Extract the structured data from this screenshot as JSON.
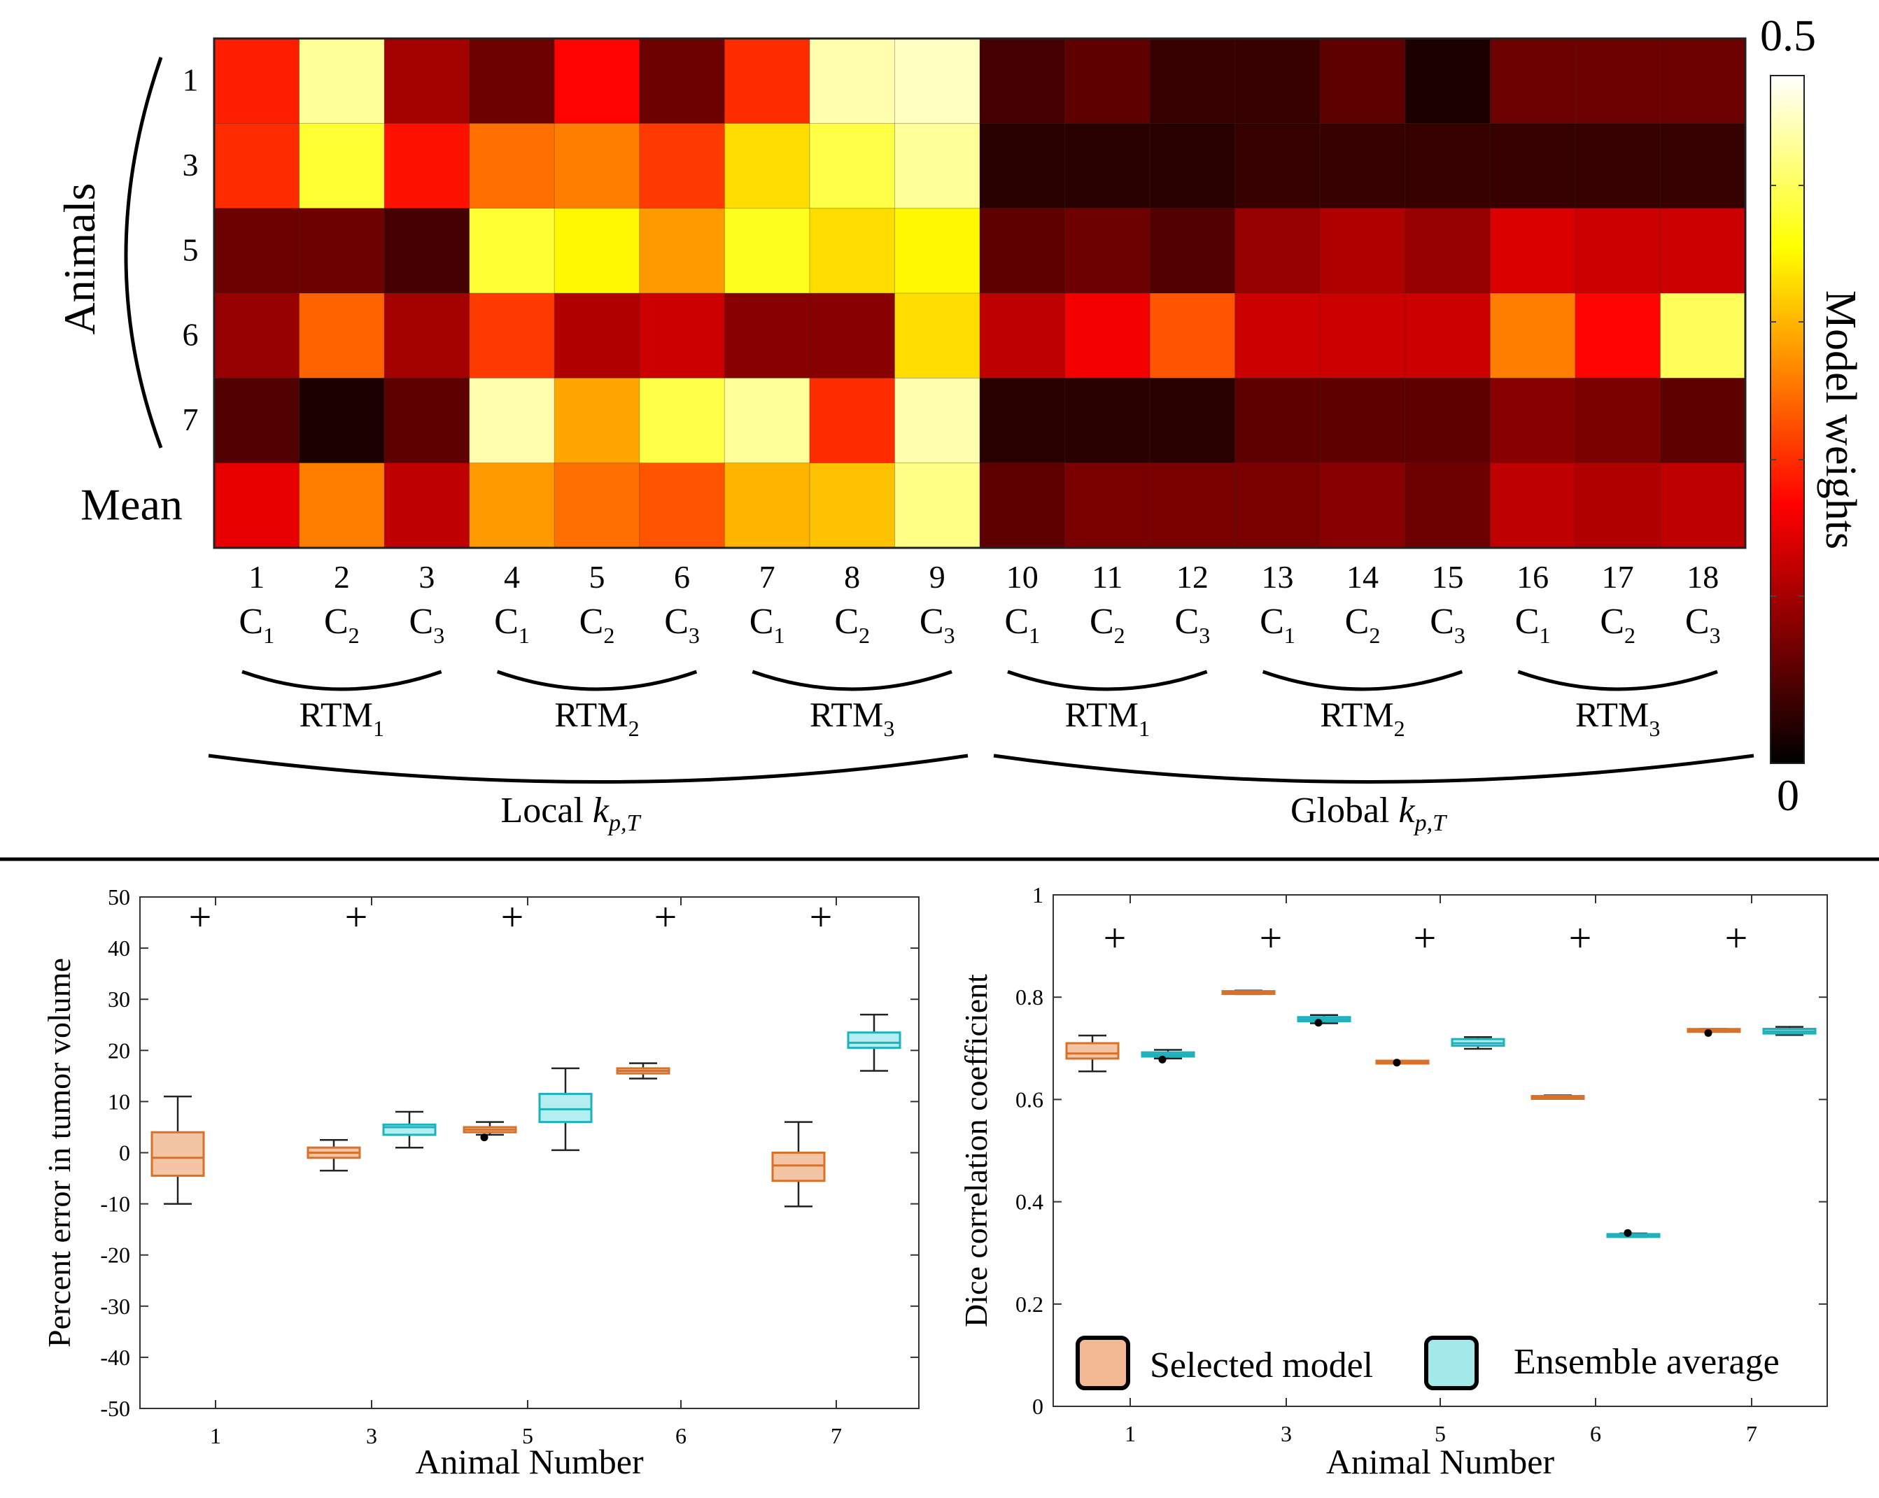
{
  "chart_data": [
    {
      "type": "heatmap",
      "title": "",
      "row_labels": [
        "1",
        "3",
        "5",
        "6",
        "7",
        "Mean"
      ],
      "row_group_label": "Animals",
      "column_numbers": [
        "1",
        "2",
        "3",
        "4",
        "5",
        "6",
        "7",
        "8",
        "9",
        "10",
        "11",
        "12",
        "13",
        "14",
        "15",
        "16",
        "17",
        "18"
      ],
      "column_subscripts": [
        "1",
        "2",
        "3",
        "1",
        "2",
        "3",
        "1",
        "2",
        "3",
        "1",
        "2",
        "3",
        "1",
        "2",
        "3",
        "1",
        "2",
        "3"
      ],
      "column_letter": "C",
      "rtm_prefix": "RTM",
      "rtm_subscripts": [
        "1",
        "2",
        "3",
        "1",
        "2",
        "3"
      ],
      "group_labels": [
        {
          "prefix": "Local ",
          "k": "k",
          "sub": "p,T"
        },
        {
          "prefix": "Global ",
          "k": "k",
          "sub": "p,T"
        }
      ],
      "colorbar": {
        "label": "Model weights",
        "min_label": "0",
        "max_label": "0.5",
        "range": [
          0,
          0.5
        ]
      },
      "values": [
        [
          0.21,
          0.45,
          0.12,
          0.08,
          0.19,
          0.08,
          0.22,
          0.46,
          0.47,
          0.05,
          0.07,
          0.04,
          0.04,
          0.07,
          0.02,
          0.08,
          0.08,
          0.08
        ],
        [
          0.22,
          0.4,
          0.2,
          0.27,
          0.28,
          0.23,
          0.35,
          0.41,
          0.45,
          0.03,
          0.03,
          0.03,
          0.04,
          0.04,
          0.04,
          0.04,
          0.04,
          0.04
        ],
        [
          0.08,
          0.08,
          0.05,
          0.4,
          0.37,
          0.3,
          0.39,
          0.35,
          0.37,
          0.07,
          0.08,
          0.06,
          0.11,
          0.13,
          0.11,
          0.16,
          0.15,
          0.15
        ],
        [
          0.11,
          0.26,
          0.12,
          0.23,
          0.13,
          0.15,
          0.1,
          0.1,
          0.35,
          0.14,
          0.18,
          0.25,
          0.15,
          0.15,
          0.15,
          0.28,
          0.19,
          0.42
        ],
        [
          0.06,
          0.02,
          0.07,
          0.46,
          0.31,
          0.41,
          0.45,
          0.22,
          0.46,
          0.03,
          0.03,
          0.03,
          0.07,
          0.07,
          0.07,
          0.1,
          0.09,
          0.07
        ],
        [
          0.17,
          0.28,
          0.14,
          0.3,
          0.27,
          0.25,
          0.32,
          0.33,
          0.44,
          0.07,
          0.09,
          0.09,
          0.09,
          0.1,
          0.08,
          0.14,
          0.13,
          0.14
        ]
      ]
    },
    {
      "type": "box",
      "xlabel": "Animal Number",
      "ylabel": "Percent error in tumor volume",
      "ylim": [
        -50,
        50
      ],
      "yticks": [
        "50",
        "40",
        "30",
        "20",
        "10",
        "0",
        "-10",
        "-20",
        "-30",
        "-40",
        "-50"
      ],
      "categories": [
        "1",
        "3",
        "5",
        "6",
        "7"
      ],
      "significance_marker": "+",
      "series": [
        {
          "name": "Selected model",
          "boxes": [
            {
              "whisker_low": -10,
              "q1": -4.5,
              "median": -1,
              "q3": 4,
              "whisker_high": 11,
              "dot": null
            },
            {
              "whisker_low": -3.5,
              "q1": -1,
              "median": 0,
              "q3": 1,
              "whisker_high": 2.5,
              "dot": null
            },
            {
              "whisker_low": 3.5,
              "q1": 4,
              "median": 4.5,
              "q3": 5,
              "whisker_high": 6,
              "dot": 3
            },
            {
              "whisker_low": 14.5,
              "q1": 15.5,
              "median": 16,
              "q3": 16.5,
              "whisker_high": 17.5,
              "dot": null
            },
            {
              "whisker_low": -10.5,
              "q1": -5.5,
              "median": -2.5,
              "q3": 0,
              "whisker_high": 6,
              "dot": null
            }
          ]
        },
        {
          "name": "Ensemble average",
          "boxes": [
            null,
            {
              "whisker_low": 1,
              "q1": 3.5,
              "median": 5,
              "q3": 5.5,
              "whisker_high": 8,
              "dot": null
            },
            {
              "whisker_low": 0.5,
              "q1": 6,
              "median": 8.5,
              "q3": 11.5,
              "whisker_high": 16.5,
              "dot": null
            },
            null,
            {
              "whisker_low": 16,
              "q1": 20.5,
              "median": 21.5,
              "q3": 23.5,
              "whisker_high": 27,
              "dot": null
            }
          ]
        }
      ]
    },
    {
      "type": "box",
      "xlabel": "Animal Number",
      "ylabel": "Dice correlation coefficient",
      "ylim": [
        0,
        1
      ],
      "yticks": [
        "1",
        "0.8",
        "0.6",
        "0.4",
        "0.2",
        "0"
      ],
      "categories": [
        "1",
        "3",
        "5",
        "6",
        "7"
      ],
      "significance_marker": "+",
      "legend_position": "bottom",
      "series": [
        {
          "name": "Selected model",
          "boxes": [
            {
              "whisker_low": 0.655,
              "q1": 0.68,
              "median": 0.69,
              "q3": 0.71,
              "whisker_high": 0.725,
              "dot": null
            },
            {
              "whisker_low": 0.806,
              "q1": 0.807,
              "median": 0.809,
              "q3": 0.811,
              "whisker_high": 0.813,
              "dot": null
            },
            {
              "whisker_low": 0.671,
              "q1": 0.672,
              "median": 0.673,
              "q3": 0.674,
              "whisker_high": 0.675,
              "dot": 0.672
            },
            {
              "whisker_low": 0.601,
              "q1": 0.602,
              "median": 0.604,
              "q3": 0.606,
              "whisker_high": 0.608,
              "dot": null
            },
            {
              "whisker_low": 0.732,
              "q1": 0.733,
              "median": 0.735,
              "q3": 0.737,
              "whisker_high": 0.738,
              "dot": 0.73
            }
          ]
        },
        {
          "name": "Ensemble average",
          "boxes": [
            {
              "whisker_low": 0.68,
              "q1": 0.684,
              "median": 0.688,
              "q3": 0.692,
              "whisker_high": 0.697,
              "dot": 0.678
            },
            {
              "whisker_low": 0.749,
              "q1": 0.753,
              "median": 0.757,
              "q3": 0.761,
              "whisker_high": 0.765,
              "dot": 0.75
            },
            {
              "whisker_low": 0.699,
              "q1": 0.705,
              "median": 0.71,
              "q3": 0.718,
              "whisker_high": 0.722,
              "dot": null
            },
            {
              "whisker_low": 0.331,
              "q1": 0.332,
              "median": 0.334,
              "q3": 0.336,
              "whisker_high": 0.338,
              "dot": 0.339
            },
            {
              "whisker_low": 0.726,
              "q1": 0.729,
              "median": 0.733,
              "q3": 0.738,
              "whisker_high": 0.742,
              "dot": null
            }
          ]
        }
      ]
    }
  ],
  "legend": [
    {
      "name": "Selected model",
      "color": "#f2b993",
      "edge": "#d8722b"
    },
    {
      "name": "Ensemble average",
      "color": "#a3e9ea",
      "edge": "#1fb1bc"
    }
  ],
  "colors": {
    "selected_fill": "#f4c5a4",
    "selected_edge": "#d8722b",
    "ensemble_fill": "#b5eef0",
    "ensemble_edge": "#1fb1bc"
  }
}
